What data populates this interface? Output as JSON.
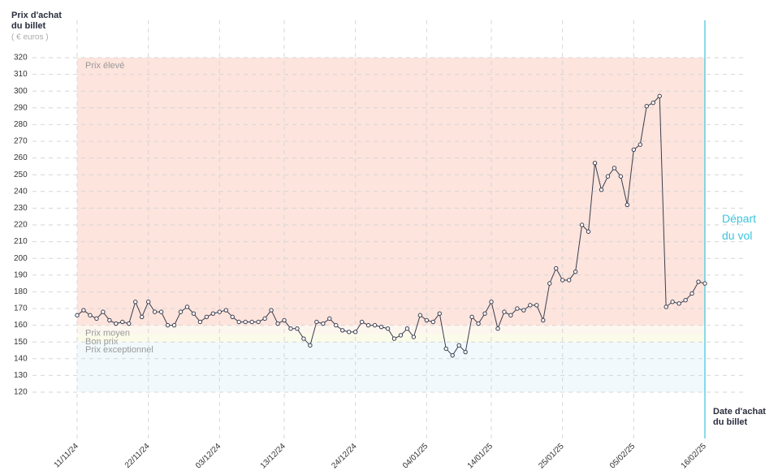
{
  "chart_data": {
    "type": "line",
    "y_label": "Prix d'achat du billet",
    "y_unit": "( € euros )",
    "x_label": "Date d'achat du billet",
    "departure": {
      "date": "2025-02-16",
      "label": "Départ du vol",
      "color": "#3cc3de"
    },
    "bands": [
      {
        "name": "Prix élevé",
        "range": [
          160,
          320
        ],
        "color": "#fde4dc"
      },
      {
        "name": "Prix moyen",
        "range": [
          155,
          160
        ],
        "color": "#fdf6ef"
      },
      {
        "name": "Bon prix",
        "range": [
          150,
          155
        ],
        "color": "#fbfbea"
      },
      {
        "name": "Prix exceptionnel",
        "range": [
          120,
          150
        ],
        "color": "#f1f9fc"
      }
    ],
    "x": [
      "2024-11-11",
      "2024-11-12",
      "2024-11-13",
      "2024-11-14",
      "2024-11-15",
      "2024-11-16",
      "2024-11-17",
      "2024-11-18",
      "2024-11-19",
      "2024-11-20",
      "2024-11-21",
      "2024-11-22",
      "2024-11-23",
      "2024-11-24",
      "2024-11-25",
      "2024-11-26",
      "2024-11-27",
      "2024-11-28",
      "2024-11-29",
      "2024-11-30",
      "2024-12-01",
      "2024-12-02",
      "2024-12-03",
      "2024-12-04",
      "2024-12-05",
      "2024-12-06",
      "2024-12-07",
      "2024-12-08",
      "2024-12-09",
      "2024-12-10",
      "2024-12-11",
      "2024-12-12",
      "2024-12-13",
      "2024-12-14",
      "2024-12-15",
      "2024-12-16",
      "2024-12-17",
      "2024-12-18",
      "2024-12-19",
      "2024-12-20",
      "2024-12-21",
      "2024-12-22",
      "2024-12-23",
      "2024-12-24",
      "2024-12-25",
      "2024-12-26",
      "2024-12-27",
      "2024-12-28",
      "2024-12-29",
      "2024-12-30",
      "2024-12-31",
      "2025-01-01",
      "2025-01-02",
      "2025-01-03",
      "2025-01-04",
      "2025-01-05",
      "2025-01-06",
      "2025-01-07",
      "2025-01-08",
      "2025-01-09",
      "2025-01-10",
      "2025-01-11",
      "2025-01-12",
      "2025-01-13",
      "2025-01-14",
      "2025-01-15",
      "2025-01-16",
      "2025-01-17",
      "2025-01-18",
      "2025-01-19",
      "2025-01-20",
      "2025-01-21",
      "2025-01-22",
      "2025-01-23",
      "2025-01-24",
      "2025-01-25",
      "2025-01-26",
      "2025-01-27",
      "2025-01-28",
      "2025-01-29",
      "2025-01-30",
      "2025-01-31",
      "2025-02-01",
      "2025-02-02",
      "2025-02-03",
      "2025-02-04",
      "2025-02-05",
      "2025-02-06",
      "2025-02-07",
      "2025-02-08",
      "2025-02-09",
      "2025-02-10",
      "2025-02-11",
      "2025-02-12",
      "2025-02-13",
      "2025-02-14",
      "2025-02-15",
      "2025-02-16"
    ],
    "series": [
      {
        "name": "Prix",
        "color": "#3a3d4f",
        "values": [
          166,
          169,
          166,
          164,
          168,
          163,
          161,
          162,
          161,
          174,
          165,
          174,
          168,
          168,
          160,
          160,
          168,
          171,
          167,
          162,
          165,
          167,
          168,
          169,
          165,
          162,
          162,
          162,
          162,
          164,
          169,
          161,
          163,
          158,
          158,
          152,
          148,
          162,
          161,
          164,
          160,
          157,
          156,
          156,
          162,
          160,
          160,
          159,
          158,
          152,
          154,
          158,
          153,
          166,
          163,
          162,
          167,
          146,
          142,
          148,
          144,
          165,
          161,
          167,
          174,
          158,
          168,
          166,
          170,
          169,
          172,
          172,
          163,
          185,
          194,
          187,
          187,
          192,
          220,
          216,
          257,
          241,
          249,
          254,
          249,
          232,
          265,
          268,
          291,
          293,
          297,
          171,
          174,
          173,
          175,
          179,
          186,
          185
        ]
      }
    ],
    "xlim": [
      "2024-11-11",
      "2025-02-16"
    ],
    "xticks": [
      {
        "value": "2024-11-11",
        "label": "11/11/24"
      },
      {
        "value": "2024-11-22",
        "label": "22/11/24"
      },
      {
        "value": "2024-12-03",
        "label": "03/12/24"
      },
      {
        "value": "2024-12-13",
        "label": "13/12/24"
      },
      {
        "value": "2024-12-24",
        "label": "24/12/24"
      },
      {
        "value": "2025-01-04",
        "label": "04/01/25"
      },
      {
        "value": "2025-01-14",
        "label": "14/01/25"
      },
      {
        "value": "2025-01-25",
        "label": "25/01/25"
      },
      {
        "value": "2025-02-05",
        "label": "05/02/25"
      },
      {
        "value": "2025-02-16",
        "label": "16/02/25"
      }
    ],
    "ylim": [
      120,
      320
    ],
    "yticks": [
      120,
      130,
      140,
      150,
      160,
      170,
      180,
      190,
      200,
      210,
      220,
      230,
      240,
      250,
      260,
      270,
      280,
      290,
      300,
      310,
      320
    ],
    "grid": true
  }
}
